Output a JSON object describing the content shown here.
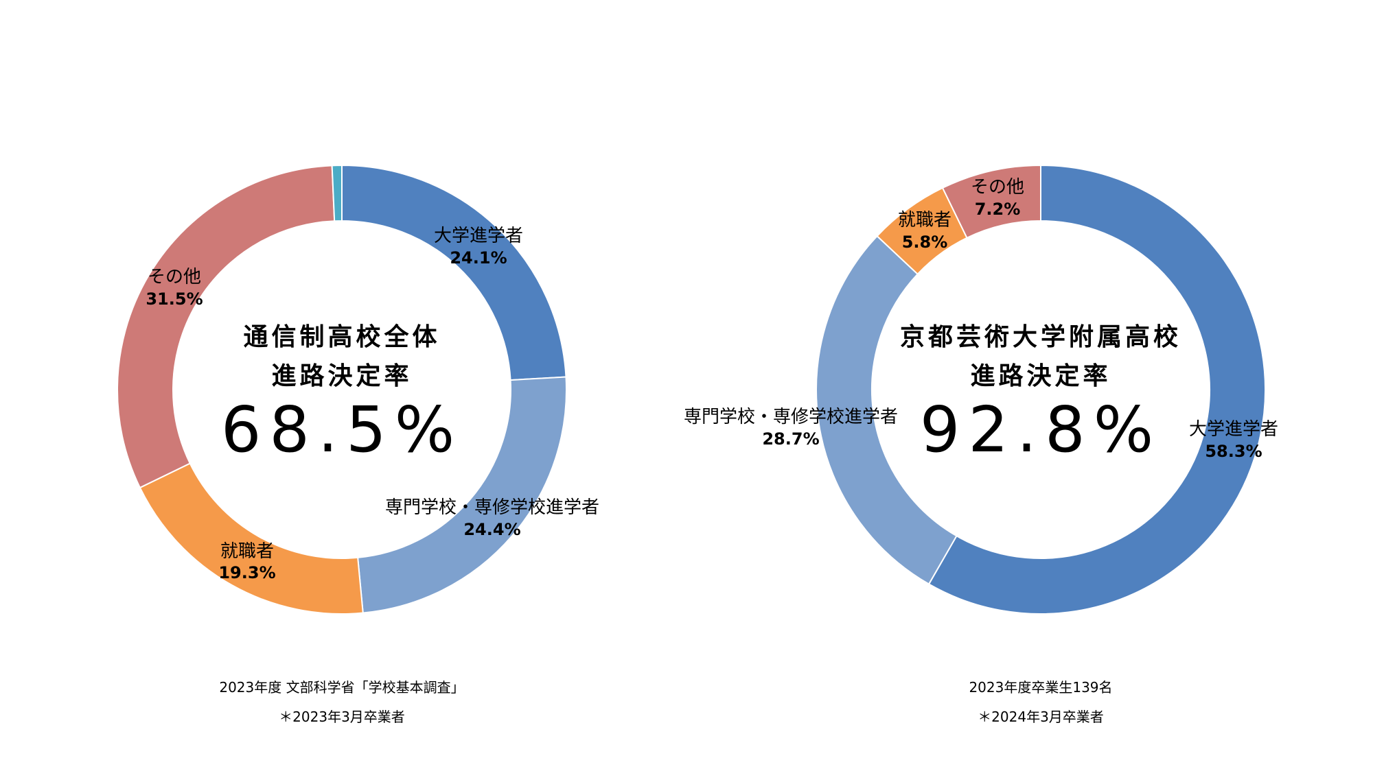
{
  "chart_data": [
    {
      "type": "pie",
      "center": {
        "title_line1": "通信制高校全体",
        "title_line2": "進路決定率",
        "value": "68.5%"
      },
      "slices": [
        {
          "name": "大学進学者",
          "value": 24.1,
          "label": "24.1%",
          "color": "#5081BF"
        },
        {
          "name": "専門学校・専修学校進学者",
          "value": 24.4,
          "label": "24.4%",
          "color": "#7EA1CE"
        },
        {
          "name": "就職者",
          "value": 19.3,
          "label": "19.3%",
          "color": "#F59A4A"
        },
        {
          "name": "その他",
          "value": 31.5,
          "label": "31.5%",
          "color": "#CE7A77"
        },
        {
          "name": "",
          "value": 0.7,
          "label": "",
          "color": "#4BACC6"
        }
      ],
      "notes": [
        "2023年度 文部科学省「学校基本調査」",
        "＊2023年3月卒業者"
      ]
    },
    {
      "type": "pie",
      "center": {
        "title_line1": "京都芸術大学附属高校",
        "title_line2": "進路決定率",
        "value": "92.8%"
      },
      "slices": [
        {
          "name": "大学進学者",
          "value": 58.3,
          "label": "58.3%",
          "color": "#5081BF"
        },
        {
          "name": "専門学校・専修学校進学者",
          "value": 28.7,
          "label": "28.7%",
          "color": "#7EA1CE"
        },
        {
          "name": "就職者",
          "value": 5.8,
          "label": "5.8%",
          "color": "#F59A4A"
        },
        {
          "name": "その他",
          "value": 7.2,
          "label": "7.2%",
          "color": "#CE7A77"
        }
      ],
      "notes": [
        "2023年度卒業生139名",
        "＊2024年3月卒業者"
      ]
    }
  ]
}
